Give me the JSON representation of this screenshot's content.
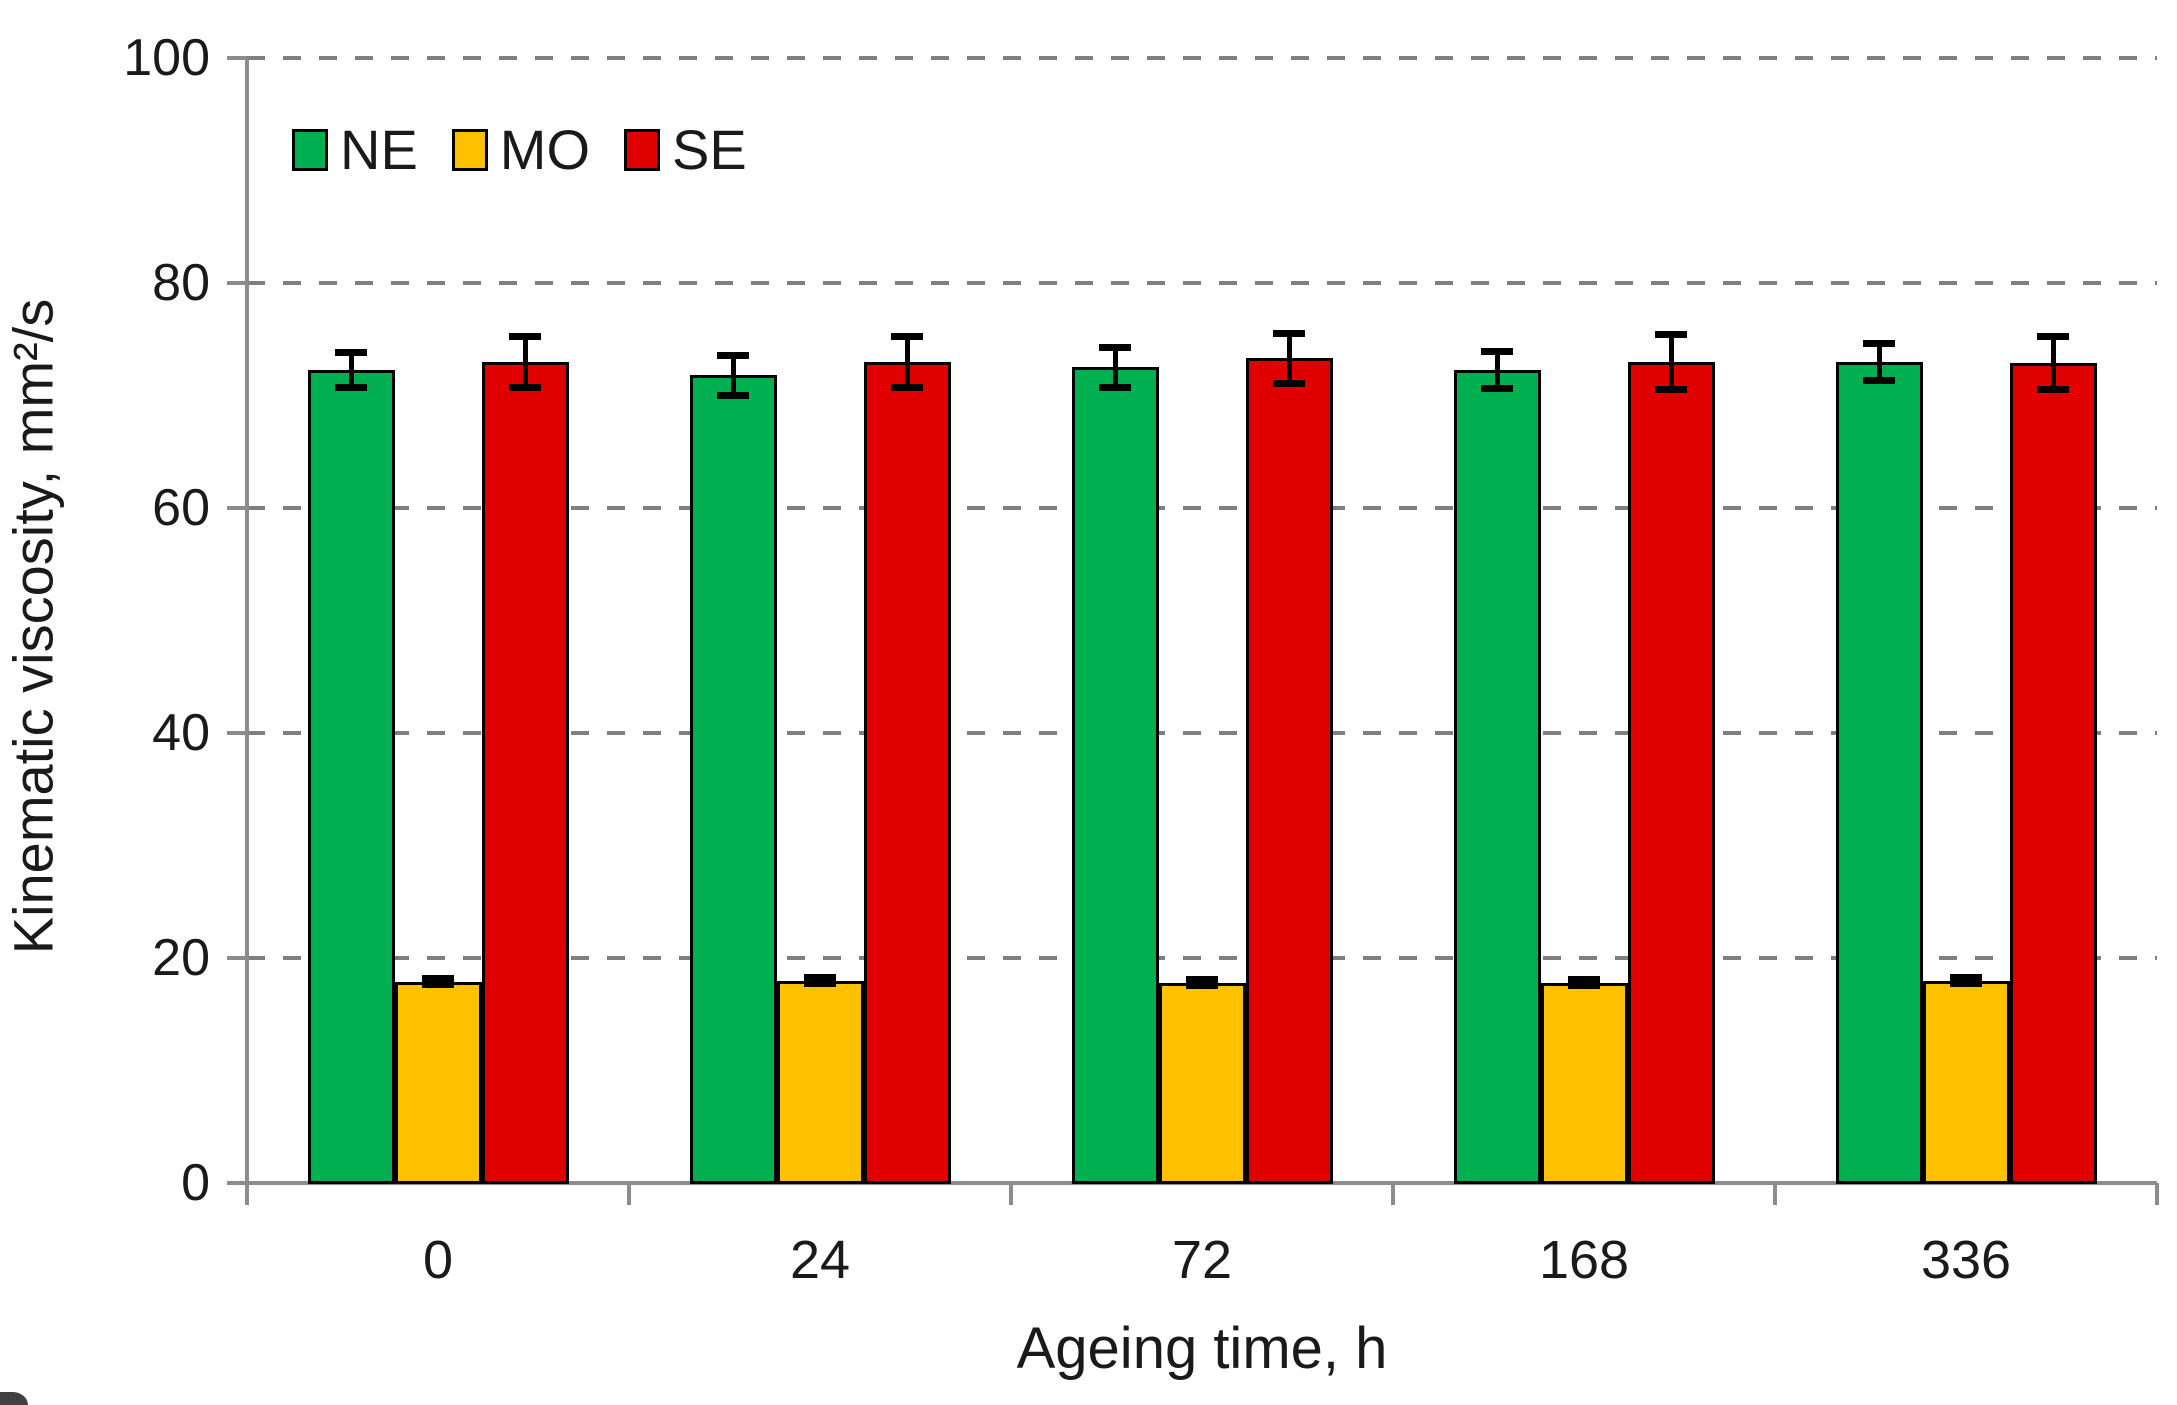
{
  "chart_data": {
    "type": "bar",
    "title": "",
    "xlabel": "Ageing time, h",
    "ylabel": "Kinematic viscosity, mm²/s",
    "categories": [
      "0",
      "24",
      "72",
      "168",
      "336"
    ],
    "series": [
      {
        "name": "NE",
        "color": "#00B050",
        "values": [
          72.3,
          71.8,
          72.5,
          72.3,
          73.0
        ],
        "errors": [
          1.6,
          1.8,
          1.8,
          1.7,
          1.7
        ]
      },
      {
        "name": "MO",
        "color": "#FFC000",
        "values": [
          17.9,
          18.0,
          17.8,
          17.8,
          18.0
        ],
        "errors": [
          0.3,
          0.3,
          0.3,
          0.3,
          0.3
        ]
      },
      {
        "name": "SE",
        "color": "#E00000",
        "values": [
          73.0,
          73.0,
          73.3,
          73.0,
          72.9
        ],
        "errors": [
          2.3,
          2.3,
          2.3,
          2.5,
          2.4
        ]
      }
    ],
    "ylim": [
      0,
      100
    ],
    "yticks": [
      0,
      20,
      40,
      60,
      80,
      100
    ],
    "grid": "horizontal dashed gridlines at each y tick",
    "legend_position": "top-left inside plot area"
  },
  "style": {
    "axis_color": "#8c8c8c",
    "grid_color": "#7f7f7f",
    "bar_border_color": "#000000",
    "error_bar_color": "#000000",
    "text_color": "#1a1a1a",
    "background": "#ffffff"
  }
}
